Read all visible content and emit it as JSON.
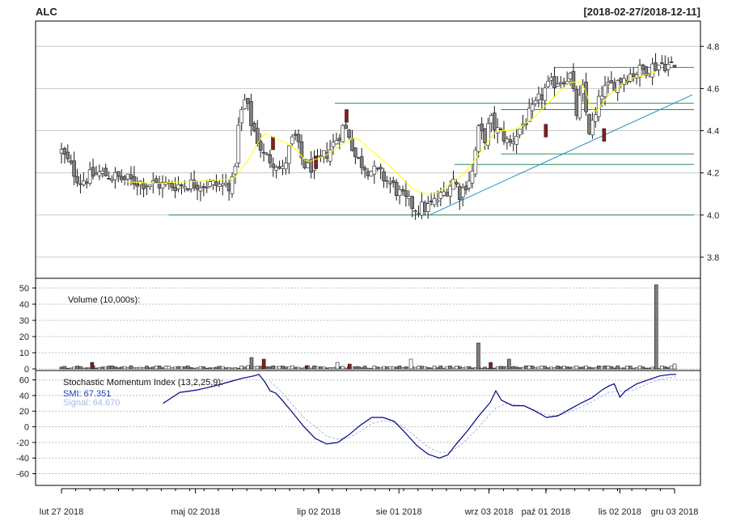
{
  "chart_data": {
    "type": "candlestick",
    "symbol": "ALC",
    "date_range": "[2018-02-27/2018-12-11]",
    "colors": {
      "up": "#ffffff",
      "down": "#7f7f7f",
      "border": "#1a1a1a",
      "marked_down": "#8b1a1a",
      "grid": "#c8c8c8",
      "ma": "#ffff00",
      "support": "#2e8b57",
      "trend": "#1e90c8",
      "smi": "#00008b",
      "signal": "#aab8e6"
    },
    "price_panel": {
      "ylim": [
        3.7,
        4.92
      ],
      "y_ticks": [
        3.8,
        4.0,
        4.2,
        4.4,
        4.6,
        4.8
      ],
      "y_tick_labels": [
        "3.8",
        "4.0",
        "4.2",
        "4.4",
        "4.6",
        "4.8"
      ],
      "support_lines": [
        {
          "y": 4.0,
          "from": 0.2,
          "to": 1.0
        },
        {
          "y": 4.24,
          "from": 0.63,
          "to": 1.0
        },
        {
          "y": 4.29,
          "from": 0.7,
          "to": 1.0
        },
        {
          "y": 4.5,
          "from": 0.7,
          "to": 1.0
        },
        {
          "y": 4.53,
          "from": 0.45,
          "to": 1.0
        },
        {
          "y": 4.7,
          "from": 0.78,
          "to": 1.0
        }
      ],
      "trendline": {
        "from": [
          0.6,
          4.0
        ],
        "to": [
          1.0,
          4.57
        ]
      }
    },
    "volume_panel": {
      "label": "Volume (10,000s):",
      "ylim": [
        -1,
        56
      ],
      "y_ticks": [
        0,
        10,
        20,
        30,
        40,
        50
      ],
      "y_tick_labels": [
        "0",
        "10",
        "20",
        "30",
        "40",
        "50"
      ]
    },
    "smi_panel": {
      "label": "Stochastic Momentum Index (13,2,25,9):",
      "smi_label": "SMI: 67.351",
      "signal_label": "Signal: 64.670",
      "ylim": [
        -75,
        72
      ],
      "y_ticks": [
        -60,
        -40,
        -20,
        0,
        20,
        40,
        60
      ],
      "y_tick_labels": [
        "-60",
        "-40",
        "-20",
        "0",
        "20",
        "40",
        "60"
      ],
      "smi_anchors": [
        [
          0.18,
          30
        ],
        [
          0.21,
          44
        ],
        [
          0.24,
          47
        ],
        [
          0.27,
          52
        ],
        [
          0.3,
          58
        ],
        [
          0.32,
          62
        ],
        [
          0.34,
          65
        ],
        [
          0.35,
          67
        ],
        [
          0.36,
          58
        ],
        [
          0.37,
          46
        ],
        [
          0.38,
          43
        ],
        [
          0.39,
          35
        ],
        [
          0.41,
          18
        ],
        [
          0.43,
          0
        ],
        [
          0.45,
          -15
        ],
        [
          0.47,
          -22
        ],
        [
          0.49,
          -20
        ],
        [
          0.51,
          -10
        ],
        [
          0.53,
          2
        ],
        [
          0.55,
          12
        ],
        [
          0.57,
          12
        ],
        [
          0.59,
          7
        ],
        [
          0.61,
          -8
        ],
        [
          0.63,
          -24
        ],
        [
          0.65,
          -35
        ],
        [
          0.67,
          -40
        ],
        [
          0.685,
          -36
        ],
        [
          0.7,
          -22
        ],
        [
          0.72,
          -5
        ],
        [
          0.74,
          14
        ],
        [
          0.76,
          31
        ],
        [
          0.77,
          46
        ],
        [
          0.78,
          34
        ],
        [
          0.8,
          27
        ],
        [
          0.82,
          27
        ],
        [
          0.84,
          20
        ],
        [
          0.86,
          12
        ],
        [
          0.88,
          14
        ],
        [
          0.9,
          22
        ],
        [
          0.92,
          30
        ],
        [
          0.94,
          37
        ],
        [
          0.96,
          48
        ],
        [
          0.97,
          52
        ],
        [
          0.98,
          55
        ],
        [
          0.99,
          38
        ],
        [
          1.0,
          46
        ],
        [
          1.02,
          55
        ],
        [
          1.04,
          60
        ],
        [
          1.06,
          65
        ],
        [
          1.08,
          67
        ],
        [
          1.09,
          67
        ]
      ],
      "signal_anchors": [
        [
          0.37,
          58
        ],
        [
          0.39,
          45
        ],
        [
          0.41,
          28
        ],
        [
          0.43,
          12
        ],
        [
          0.45,
          0
        ],
        [
          0.47,
          -12
        ],
        [
          0.49,
          -16
        ],
        [
          0.51,
          -14
        ],
        [
          0.53,
          -6
        ],
        [
          0.55,
          4
        ],
        [
          0.57,
          8
        ],
        [
          0.59,
          6
        ],
        [
          0.61,
          -2
        ],
        [
          0.63,
          -14
        ],
        [
          0.65,
          -26
        ],
        [
          0.67,
          -33
        ],
        [
          0.69,
          -32
        ],
        [
          0.71,
          -22
        ],
        [
          0.73,
          -8
        ],
        [
          0.75,
          8
        ],
        [
          0.77,
          24
        ],
        [
          0.79,
          30
        ],
        [
          0.81,
          28
        ],
        [
          0.83,
          24
        ],
        [
          0.85,
          18
        ],
        [
          0.87,
          14
        ],
        [
          0.89,
          16
        ],
        [
          0.91,
          22
        ],
        [
          0.93,
          28
        ],
        [
          0.95,
          36
        ],
        [
          0.97,
          44
        ],
        [
          0.99,
          46
        ],
        [
          1.01,
          46
        ],
        [
          1.03,
          52
        ],
        [
          1.05,
          58
        ],
        [
          1.07,
          62
        ],
        [
          1.09,
          64
        ]
      ]
    },
    "x_axis": {
      "tick_labels": [
        "lut 27 2018",
        "maj 02 2018",
        "lip 02 2018",
        "sie 01 2018",
        "wrz 03 2018",
        "paź 01 2018",
        "lis 02 2018",
        "gru 03 2018"
      ],
      "tick_positions": [
        0.0,
        0.2185,
        0.4197,
        0.5504,
        0.6973,
        0.7901,
        0.9107,
        1.0
      ]
    },
    "ma_anchors": [
      [
        0.1,
        4.16
      ],
      [
        0.15,
        4.15
      ],
      [
        0.22,
        4.16
      ],
      [
        0.28,
        4.17
      ],
      [
        0.3,
        4.24
      ],
      [
        0.33,
        4.39
      ],
      [
        0.36,
        4.35
      ],
      [
        0.38,
        4.32
      ],
      [
        0.4,
        4.25
      ],
      [
        0.43,
        4.28
      ],
      [
        0.46,
        4.34
      ],
      [
        0.48,
        4.37
      ],
      [
        0.5,
        4.32
      ],
      [
        0.52,
        4.27
      ],
      [
        0.54,
        4.22
      ],
      [
        0.57,
        4.13
      ],
      [
        0.59,
        4.1
      ],
      [
        0.61,
        4.1
      ],
      [
        0.63,
        4.14
      ],
      [
        0.65,
        4.18
      ],
      [
        0.67,
        4.24
      ],
      [
        0.69,
        4.33
      ],
      [
        0.71,
        4.4
      ],
      [
        0.73,
        4.4
      ],
      [
        0.75,
        4.42
      ],
      [
        0.77,
        4.46
      ],
      [
        0.79,
        4.52
      ],
      [
        0.81,
        4.58
      ],
      [
        0.83,
        4.63
      ],
      [
        0.85,
        4.63
      ],
      [
        0.86,
        4.54
      ],
      [
        0.87,
        4.48
      ],
      [
        0.89,
        4.56
      ],
      [
        0.91,
        4.61
      ],
      [
        0.93,
        4.65
      ],
      [
        0.95,
        4.66
      ],
      [
        0.97,
        4.68
      ]
    ],
    "price_anchors": [
      [
        0.0,
        4.3
      ],
      [
        0.03,
        4.16
      ],
      [
        0.06,
        4.2
      ],
      [
        0.1,
        4.17
      ],
      [
        0.14,
        4.15
      ],
      [
        0.18,
        4.14
      ],
      [
        0.22,
        4.15
      ],
      [
        0.26,
        4.14
      ],
      [
        0.28,
        4.15
      ],
      [
        0.29,
        4.45
      ],
      [
        0.3,
        4.55
      ],
      [
        0.31,
        4.43
      ],
      [
        0.33,
        4.28
      ],
      [
        0.35,
        4.25
      ],
      [
        0.36,
        4.2
      ],
      [
        0.37,
        4.3
      ],
      [
        0.38,
        4.38
      ],
      [
        0.39,
        4.28
      ],
      [
        0.4,
        4.22
      ],
      [
        0.42,
        4.25
      ],
      [
        0.44,
        4.32
      ],
      [
        0.46,
        4.42
      ],
      [
        0.47,
        4.38
      ],
      [
        0.48,
        4.27
      ],
      [
        0.5,
        4.22
      ],
      [
        0.52,
        4.19
      ],
      [
        0.54,
        4.14
      ],
      [
        0.56,
        4.07
      ],
      [
        0.58,
        4.03
      ],
      [
        0.6,
        4.04
      ],
      [
        0.62,
        4.09
      ],
      [
        0.63,
        4.13
      ],
      [
        0.64,
        4.17
      ],
      [
        0.65,
        4.1
      ],
      [
        0.67,
        4.2
      ],
      [
        0.68,
        4.4
      ],
      [
        0.69,
        4.36
      ],
      [
        0.7,
        4.45
      ],
      [
        0.71,
        4.4
      ],
      [
        0.72,
        4.38
      ],
      [
        0.73,
        4.33
      ],
      [
        0.75,
        4.42
      ],
      [
        0.77,
        4.5
      ],
      [
        0.79,
        4.6
      ],
      [
        0.81,
        4.64
      ],
      [
        0.83,
        4.66
      ],
      [
        0.84,
        4.48
      ],
      [
        0.85,
        4.6
      ],
      [
        0.86,
        4.4
      ],
      [
        0.87,
        4.45
      ],
      [
        0.88,
        4.58
      ],
      [
        0.9,
        4.62
      ],
      [
        0.92,
        4.66
      ],
      [
        0.94,
        4.68
      ],
      [
        0.96,
        4.7
      ],
      [
        0.98,
        4.72
      ],
      [
        1.0,
        4.7
      ]
    ],
    "price_drop_days": [
      [
        0.345,
        4.34
      ],
      [
        0.415,
        4.25
      ],
      [
        0.465,
        4.47
      ],
      [
        0.79,
        4.4
      ],
      [
        0.885,
        4.38
      ]
    ],
    "volume_spikes": [
      [
        0.05,
        4,
        "marked_down"
      ],
      [
        0.31,
        7,
        "down"
      ],
      [
        0.33,
        6,
        "marked_down"
      ],
      [
        0.4,
        2,
        "marked_down"
      ],
      [
        0.45,
        4,
        "up"
      ],
      [
        0.47,
        3,
        "marked_down"
      ],
      [
        0.57,
        6,
        "up"
      ],
      [
        0.68,
        16,
        "down"
      ],
      [
        0.7,
        4,
        "marked_down"
      ],
      [
        0.73,
        6,
        "down"
      ],
      [
        0.97,
        52,
        "down"
      ],
      [
        1.0,
        3,
        "up"
      ]
    ]
  }
}
